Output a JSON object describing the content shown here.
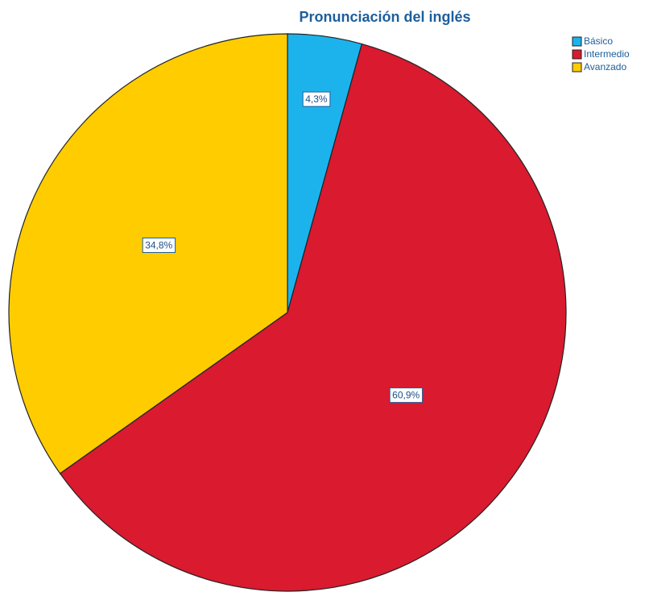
{
  "chart_data": {
    "type": "pie",
    "title": "Pronunciación del inglés",
    "categories": [
      "Básico",
      "Intermedio",
      "Avanzado"
    ],
    "values": [
      4.3,
      60.9,
      34.8
    ],
    "value_labels": [
      "4,3%",
      "60,9%",
      "34,8%"
    ],
    "colors": [
      "#1cb3ec",
      "#d91a2f",
      "#ffcc00"
    ],
    "legend": "top-right"
  }
}
